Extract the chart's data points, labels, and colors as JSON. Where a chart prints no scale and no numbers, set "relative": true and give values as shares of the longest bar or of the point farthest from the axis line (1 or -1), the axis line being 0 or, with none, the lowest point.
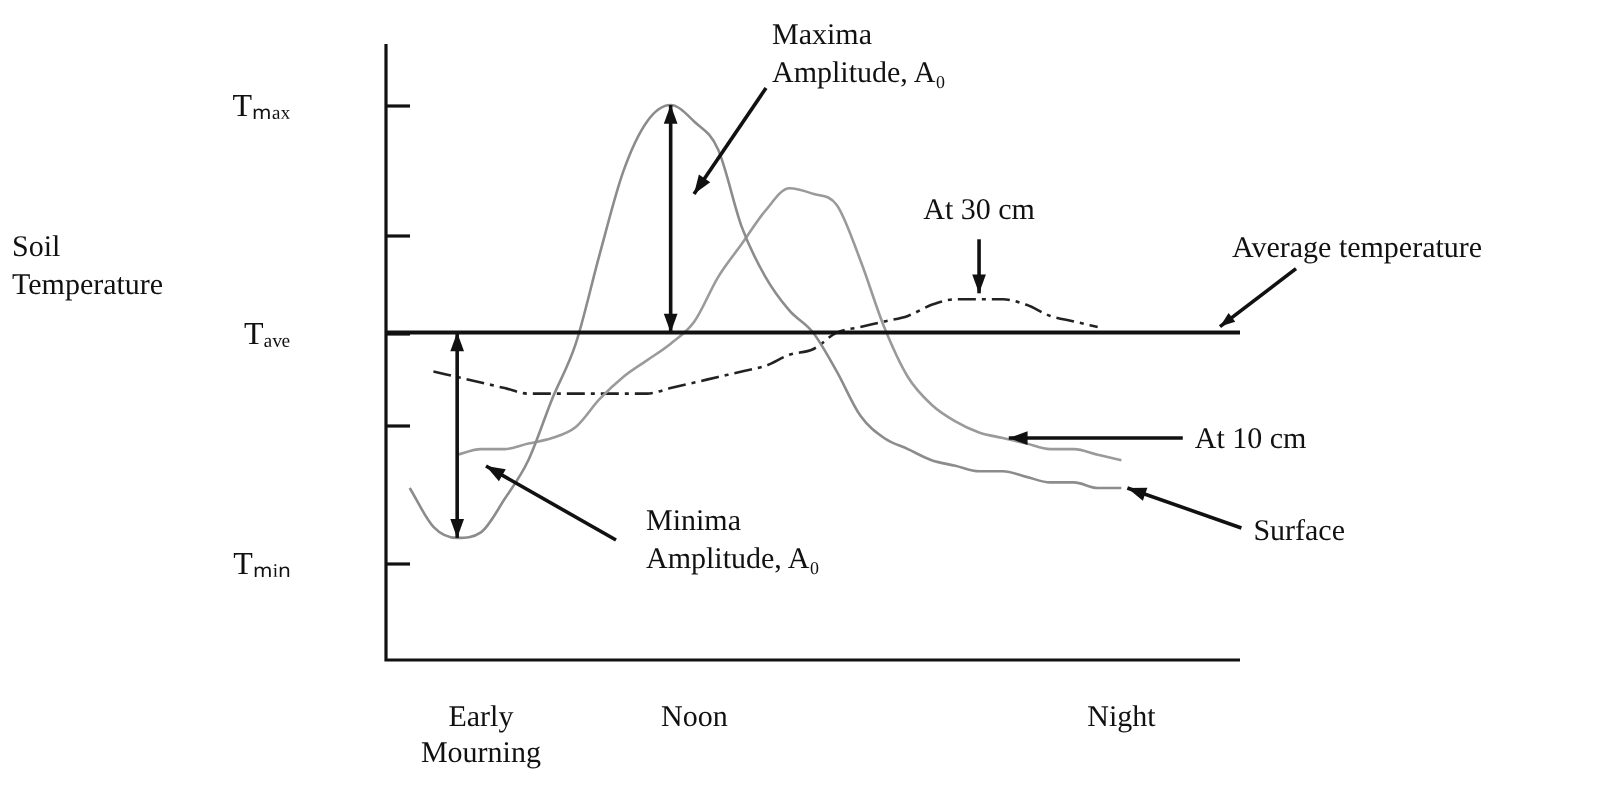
{
  "chart_data": {
    "type": "line",
    "relative": true,
    "categories": [
      null,
      null,
      null,
      null,
      "Early Mourning",
      null,
      null,
      null,
      null,
      null,
      null,
      null,
      null,
      "Noon",
      null,
      null,
      null,
      null,
      null,
      null,
      null,
      null,
      null,
      null,
      null,
      null,
      null,
      null,
      null,
      null,
      null,
      "Night",
      null,
      null,
      null,
      null,
      null
    ],
    "series": [
      {
        "name": "Surface",
        "color": "#8c8c8c",
        "values": [
          null,
          0.31,
          0.24,
          0.22,
          0.23,
          0.29,
          0.36,
          0.47,
          0.57,
          0.73,
          0.88,
          0.97,
          1.0,
          0.97,
          0.92,
          0.78,
          0.69,
          0.63,
          0.59,
          0.52,
          0.44,
          0.4,
          0.38,
          0.36,
          0.35,
          0.34,
          0.34,
          0.33,
          0.32,
          0.32,
          0.31,
          0.31,
          null,
          null,
          null,
          null,
          null
        ]
      },
      {
        "name": "At 10 cm",
        "color": "#9a9a9a",
        "values": [
          null,
          null,
          null,
          0.37,
          0.38,
          0.38,
          0.39,
          0.4,
          0.42,
          0.47,
          0.51,
          0.54,
          0.57,
          0.61,
          0.69,
          0.75,
          0.81,
          0.85,
          0.84,
          0.82,
          0.72,
          0.6,
          0.51,
          0.46,
          0.43,
          0.41,
          0.4,
          0.39,
          0.38,
          0.38,
          0.37,
          0.36,
          null,
          null,
          null,
          null,
          null
        ]
      },
      {
        "name": "At 30 cm",
        "color": "#222222",
        "line_style": "dashed",
        "values": [
          null,
          null,
          0.52,
          0.51,
          0.5,
          0.49,
          0.48,
          0.48,
          0.48,
          0.48,
          0.48,
          0.48,
          0.49,
          0.5,
          0.51,
          0.52,
          0.53,
          0.55,
          0.56,
          0.59,
          0.6,
          0.61,
          0.62,
          0.64,
          0.65,
          0.65,
          0.65,
          0.64,
          0.62,
          0.61,
          0.6,
          null,
          null,
          null,
          null,
          null,
          null
        ]
      }
    ],
    "ref_lines": [
      {
        "axis": "y",
        "value": 0.59,
        "label": "Average temperature",
        "color": "#111111"
      }
    ],
    "annotations": [
      "Soil Temperature",
      "Tₘₐₓ",
      "Tₐᵥₑ",
      "Tₘᵢₙ",
      "Maxima Amplitude, A₀",
      "Minima Amplitude, A₀"
    ],
    "grid": false,
    "legend": false,
    "marker": "none"
  }
}
